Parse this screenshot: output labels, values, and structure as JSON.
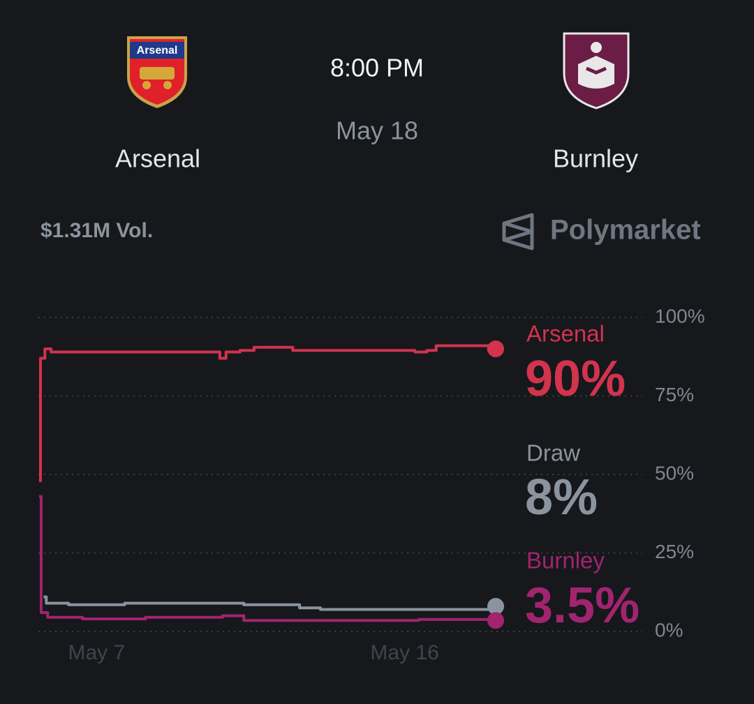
{
  "header": {
    "home": "Arsenal",
    "home_badge": "Arsenal",
    "away": "Burnley",
    "time": "8:00 PM",
    "date": "May 18",
    "volume": "$1.31M Vol.",
    "brand": "Polymarket"
  },
  "chart_data": {
    "type": "line",
    "xlim": [
      5.3,
      18.7
    ],
    "xticks": [
      {
        "value": 7,
        "label": "May 7"
      },
      {
        "value": 16,
        "label": "May 16"
      }
    ],
    "ylim": [
      0,
      100
    ],
    "yticks": [
      {
        "value": 0,
        "label": "0%"
      },
      {
        "value": 25,
        "label": "25%"
      },
      {
        "value": 50,
        "label": "50%"
      },
      {
        "value": 75,
        "label": "75%"
      },
      {
        "value": 100,
        "label": "100%"
      }
    ],
    "grid": true,
    "series": [
      {
        "name": "Arsenal",
        "color": "#d2334d",
        "last_label": "90%",
        "x": [
          5.32,
          5.36,
          5.49,
          5.67,
          7.0,
          10.6,
          10.78,
          11.19,
          11.6,
          12.62,
          12.73,
          16.2,
          16.3,
          16.65,
          16.92,
          18.25,
          18.45,
          18.66
        ],
        "values": [
          48,
          87,
          90,
          89,
          89,
          87,
          89,
          89.5,
          90.5,
          90.5,
          89.5,
          89.5,
          89,
          89.5,
          91,
          91,
          89.5,
          90
        ]
      },
      {
        "name": "Draw",
        "color": "#8b949e",
        "last_label": "8%",
        "x": [
          5.45,
          5.53,
          6.18,
          7.82,
          11.3,
          12.93,
          13.54,
          18.66
        ],
        "values": [
          11,
          9,
          8.5,
          9,
          8.5,
          7.5,
          7,
          8
        ]
      },
      {
        "name": "Burnley",
        "color": "#a1246f",
        "last_label": "3.5%",
        "x": [
          5.32,
          5.38,
          5.57,
          6.59,
          8.43,
          10.68,
          11.3,
          14.36,
          16.41,
          18.66
        ],
        "values": [
          43,
          6,
          4.5,
          4,
          4.5,
          5,
          3.5,
          3.5,
          3.8,
          3.5
        ]
      }
    ]
  }
}
